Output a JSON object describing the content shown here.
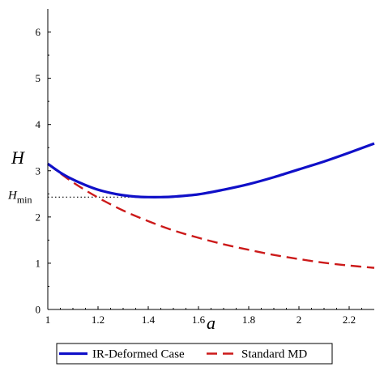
{
  "chart_data": {
    "type": "line",
    "title": "",
    "xlabel": "a",
    "ylabel": "H",
    "xlim": [
      1,
      2.3
    ],
    "ylim": [
      0,
      6.5
    ],
    "xticks": [
      "1",
      "1.2",
      "1.4",
      "1.6",
      "1.8",
      "2",
      "2.2"
    ],
    "xtick_values": [
      1,
      1.2,
      1.4,
      1.6,
      1.8,
      2,
      2.2
    ],
    "yticks": [
      "0",
      "1",
      "2",
      "3",
      "4",
      "5",
      "6"
    ],
    "ytick_values": [
      0,
      1,
      2,
      3,
      4,
      5,
      6
    ],
    "grid": false,
    "legend_position": "bottom",
    "series": [
      {
        "name": "IR-Deformed Case",
        "color": "#1010c8",
        "style": "solid",
        "x": [
          1.0,
          1.05,
          1.1,
          1.15,
          1.2,
          1.25,
          1.3,
          1.35,
          1.4,
          1.45,
          1.5,
          1.6,
          1.7,
          1.8,
          1.9,
          2.0,
          2.1,
          2.2,
          2.3
        ],
        "y": [
          3.15,
          2.96,
          2.81,
          2.69,
          2.59,
          2.52,
          2.47,
          2.44,
          2.43,
          2.43,
          2.44,
          2.49,
          2.59,
          2.71,
          2.86,
          3.03,
          3.2,
          3.39,
          3.59
        ]
      },
      {
        "name": "Standard MD",
        "color": "#cc1a1a",
        "style": "dashed",
        "x": [
          1.0,
          1.1,
          1.2,
          1.3,
          1.4,
          1.5,
          1.6,
          1.7,
          1.8,
          1.9,
          2.0,
          2.1,
          2.2,
          2.3
        ],
        "y": [
          3.15,
          2.75,
          2.42,
          2.14,
          1.91,
          1.71,
          1.55,
          1.41,
          1.29,
          1.18,
          1.09,
          1.01,
          0.95,
          0.9
        ]
      }
    ],
    "annotations": [
      {
        "label": "H",
        "subscript": "min",
        "y": 2.43,
        "style": "dotted"
      }
    ]
  }
}
